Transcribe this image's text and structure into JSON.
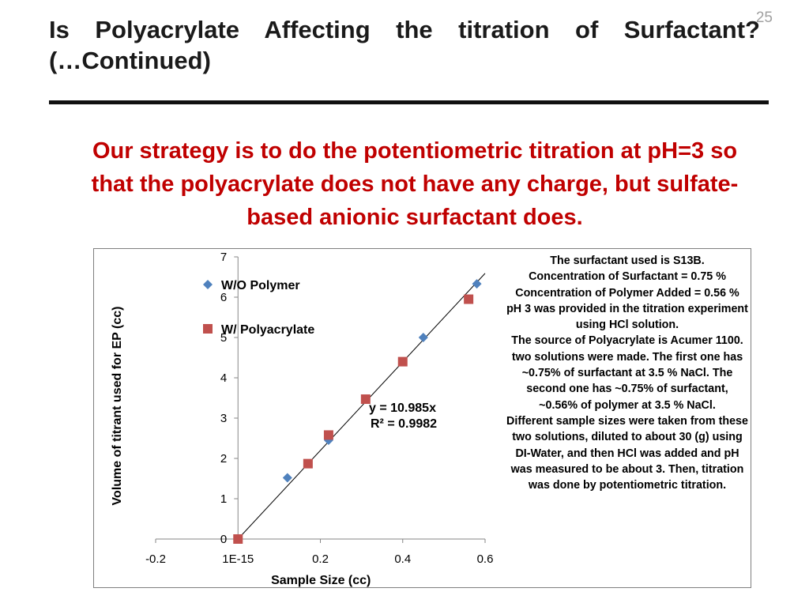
{
  "slide": {
    "title_line1": "Is Polyacrylate Affecting the titration of Surfactant?",
    "title_line2": "(…Continued)",
    "number": "25",
    "strategy": "Our strategy is to do the potentiometric titration at pH=3 so that the polyacrylate does not have any charge, but sulfate-based anionic surfactant does."
  },
  "notes": [
    "The surfactant used is S13B.",
    "Concentration of Surfactant = 0.75 %",
    "Concentration of Polymer Added = 0.56 %",
    "pH 3 was provided in the titration experiment using HCl solution.",
    "The source of Polyacrylate is Acumer 1100.",
    "two solutions were made. The first one has ~0.75% of surfactant at 3.5 % NaCl. The second one has ~0.75% of surfactant, ~0.56% of polymer at 3.5 % NaCl.",
    "Different sample sizes were taken from these two solutions, diluted to about 30 (g) using DI-Water, and then HCl was added and pH was measured to be about 3. Then, titration was done by potentiometric titration."
  ],
  "colors": {
    "title": "#1a1a1a",
    "accent_red": "#c00000",
    "series_wo": "#4f81bd",
    "series_w": "#c0504d",
    "slide_number": "#a0a0a0"
  },
  "chart_data": {
    "type": "scatter",
    "xlabel": "Sample Size (cc)",
    "ylabel": "Volume of titrant used for EP (cc)",
    "xlim": [
      -0.2,
      0.6
    ],
    "ylim": [
      0,
      7
    ],
    "x_ticks": [
      -0.2,
      0,
      0.2,
      0.4,
      0.6
    ],
    "x_tick_labels": [
      "-0.2",
      "1E-15",
      "0.2",
      "0.4",
      "0.6"
    ],
    "y_ticks": [
      0,
      1,
      2,
      3,
      4,
      5,
      6,
      7
    ],
    "y_tick_labels": [
      "0",
      "1",
      "2",
      "3",
      "4",
      "5",
      "6",
      "7"
    ],
    "legend_position": "top-left",
    "grid": false,
    "series": [
      {
        "name": "W/O Polymer",
        "marker": "diamond",
        "color": "#4f81bd",
        "points": [
          [
            0.12,
            1.52
          ],
          [
            0.22,
            2.45
          ],
          [
            0.45,
            5.0
          ],
          [
            0.58,
            6.33
          ]
        ]
      },
      {
        "name": "W/ Polyacrylate",
        "marker": "square",
        "color": "#c0504d",
        "points": [
          [
            0.0,
            0.0
          ],
          [
            0.17,
            1.87
          ],
          [
            0.22,
            2.58
          ],
          [
            0.31,
            3.47
          ],
          [
            0.4,
            4.4
          ],
          [
            0.56,
            5.95
          ]
        ]
      }
    ],
    "trendline": {
      "slope": 10.985,
      "x_range": [
        0.0,
        0.6
      ],
      "equation": "y = 10.985x",
      "r_squared": "R² = 0.9982"
    }
  }
}
